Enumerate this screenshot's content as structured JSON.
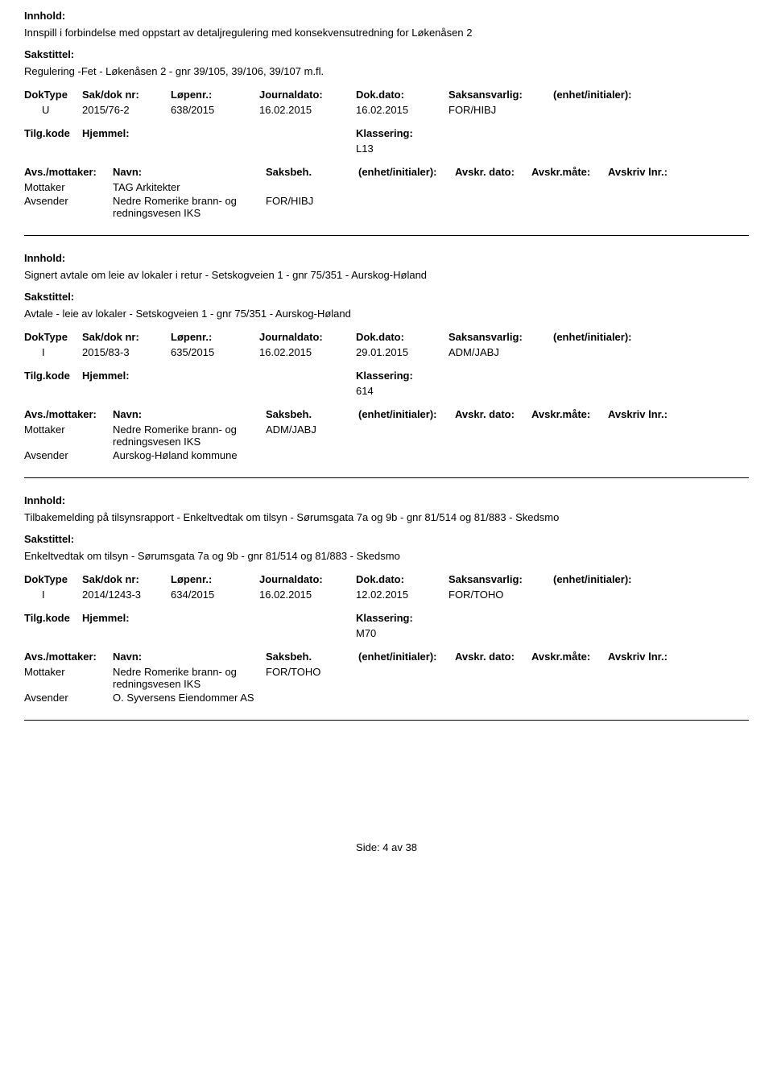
{
  "labels": {
    "innhold": "Innhold:",
    "sakstittel": "Sakstittel:",
    "doktype": "DokType",
    "sakdoknr": "Sak/dok nr:",
    "lopenr": "Løpenr.:",
    "journaldato": "Journaldato:",
    "dokdato": "Dok.dato:",
    "saksansvarlig": "Saksansvarlig:",
    "enhet": "(enhet/initialer):",
    "tilgkode": "Tilg.kode",
    "hjemmel": "Hjemmel:",
    "klassering": "Klassering:",
    "avsmottaker": "Avs./mottaker:",
    "navn": "Navn:",
    "saksbeh": "Saksbeh.",
    "enhetinit": "(enhet/initialer):",
    "avskrdato": "Avskr. dato:",
    "avskrmote": "Avskr.måte:",
    "avskrlnr": "Avskriv lnr.:",
    "mottaker": "Mottaker",
    "avsender": "Avsender"
  },
  "records": [
    {
      "innhold": "Innspill i forbindelse med oppstart av detaljregulering med konsekvensutredning for Løkenåsen 2",
      "sakstittel": "Regulering -Fet - Løkenåsen 2 - gnr 39/105, 39/106, 39/107 m.fl.",
      "doktype": "U",
      "sakdoknr": "2015/76-2",
      "lopenr": "638/2015",
      "journaldato": "16.02.2015",
      "dokdato": "16.02.2015",
      "saksansvarlig": "FOR/HIBJ",
      "klassering": "L13",
      "parties": [
        {
          "role": "Mottaker",
          "name": "TAG Arkitekter",
          "saksbeh": ""
        },
        {
          "role": "Avsender",
          "name": "Nedre Romerike brann- og redningsvesen IKS",
          "saksbeh": "FOR/HIBJ"
        }
      ]
    },
    {
      "innhold": "Signert avtale om leie av lokaler i retur - Setskogveien 1 - gnr 75/351 - Aurskog-Høland",
      "sakstittel": "Avtale - leie av lokaler - Setskogveien 1 - gnr 75/351 - Aurskog-Høland",
      "doktype": "I",
      "sakdoknr": "2015/83-3",
      "lopenr": "635/2015",
      "journaldato": "16.02.2015",
      "dokdato": "29.01.2015",
      "saksansvarlig": "ADM/JABJ",
      "klassering": "614",
      "parties": [
        {
          "role": "Mottaker",
          "name": "Nedre Romerike brann- og redningsvesen IKS",
          "saksbeh": "ADM/JABJ"
        },
        {
          "role": "Avsender",
          "name": "Aurskog-Høland kommune",
          "saksbeh": ""
        }
      ]
    },
    {
      "innhold": "Tilbakemelding på tilsynsrapport - Enkeltvedtak om tilsyn - Sørumsgata 7a og 9b - gnr 81/514 og 81/883 - Skedsmo",
      "sakstittel": "Enkeltvedtak om tilsyn - Sørumsgata 7a og 9b - gnr 81/514 og 81/883 - Skedsmo",
      "doktype": "I",
      "sakdoknr": "2014/1243-3",
      "lopenr": "634/2015",
      "journaldato": "16.02.2015",
      "dokdato": "12.02.2015",
      "saksansvarlig": "FOR/TOHO",
      "klassering": "M70",
      "parties": [
        {
          "role": "Mottaker",
          "name": "Nedre Romerike brann- og redningsvesen IKS",
          "saksbeh": "FOR/TOHO"
        },
        {
          "role": "Avsender",
          "name": "O. Syversens Eiendommer AS",
          "saksbeh": ""
        }
      ]
    }
  ],
  "footer": {
    "prefix": "Side: ",
    "current": "4",
    "sep": " av ",
    "total": "38"
  }
}
